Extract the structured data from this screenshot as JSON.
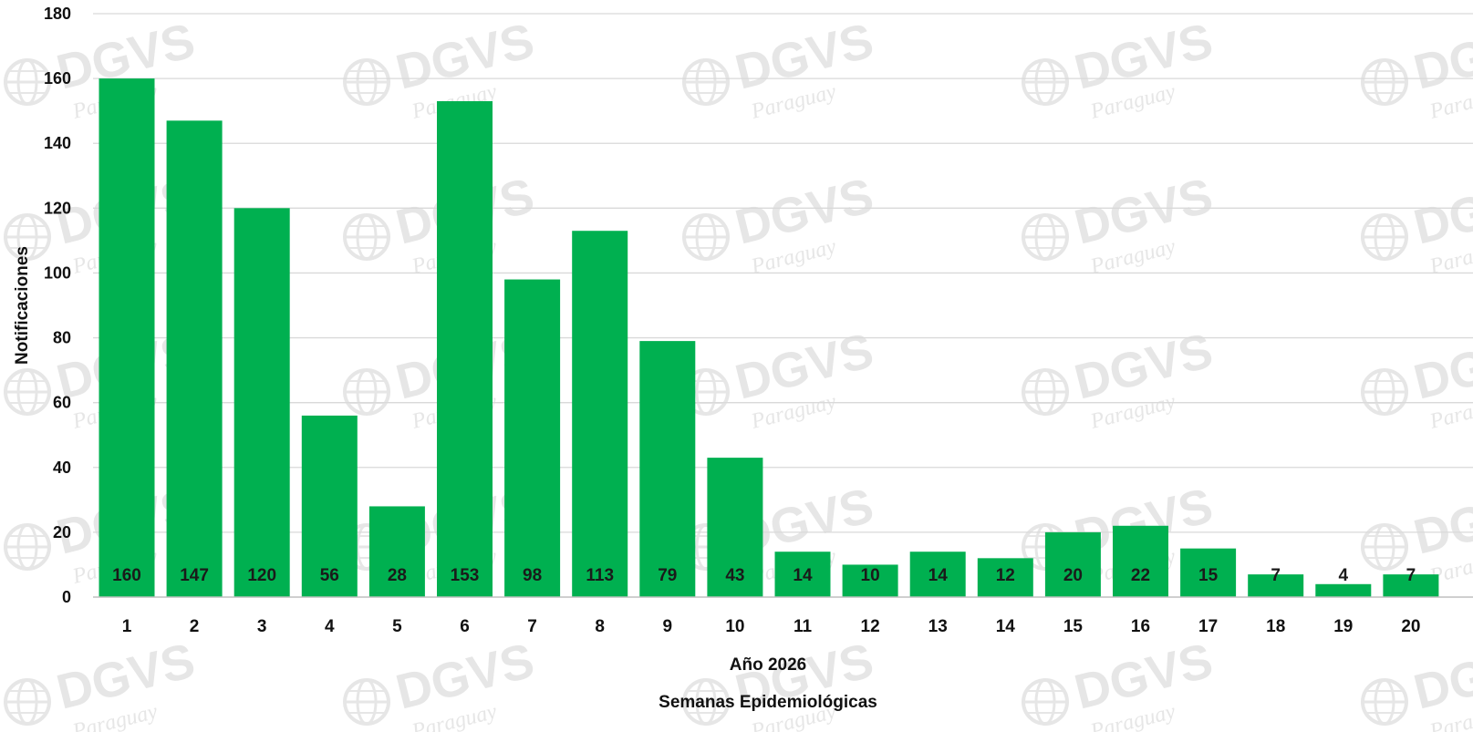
{
  "chart_data": {
    "type": "bar",
    "title": "",
    "xlabel": "Semanas Epidemiológicas",
    "xlabel_sub": "Año 2026",
    "ylabel": "Notificaciones",
    "ylim": [
      0,
      180
    ],
    "yticks": [
      0,
      20,
      40,
      60,
      80,
      100,
      120,
      140,
      160,
      180
    ],
    "grid": true,
    "legend": "none",
    "categories": [
      "1",
      "2",
      "3",
      "4",
      "5",
      "6",
      "7",
      "8",
      "9",
      "10",
      "11",
      "12",
      "13",
      "14",
      "15",
      "16",
      "17",
      "18",
      "19",
      "20"
    ],
    "values": [
      160,
      147,
      120,
      56,
      28,
      153,
      98,
      113,
      79,
      43,
      14,
      10,
      14,
      12,
      20,
      22,
      15,
      7,
      4,
      7
    ],
    "bar_color": "#00b050",
    "gridline_color": "#d9d9d9"
  },
  "watermark": {
    "brand": "DGVS",
    "sub": "Paraguay",
    "icon": "globe-icon"
  }
}
